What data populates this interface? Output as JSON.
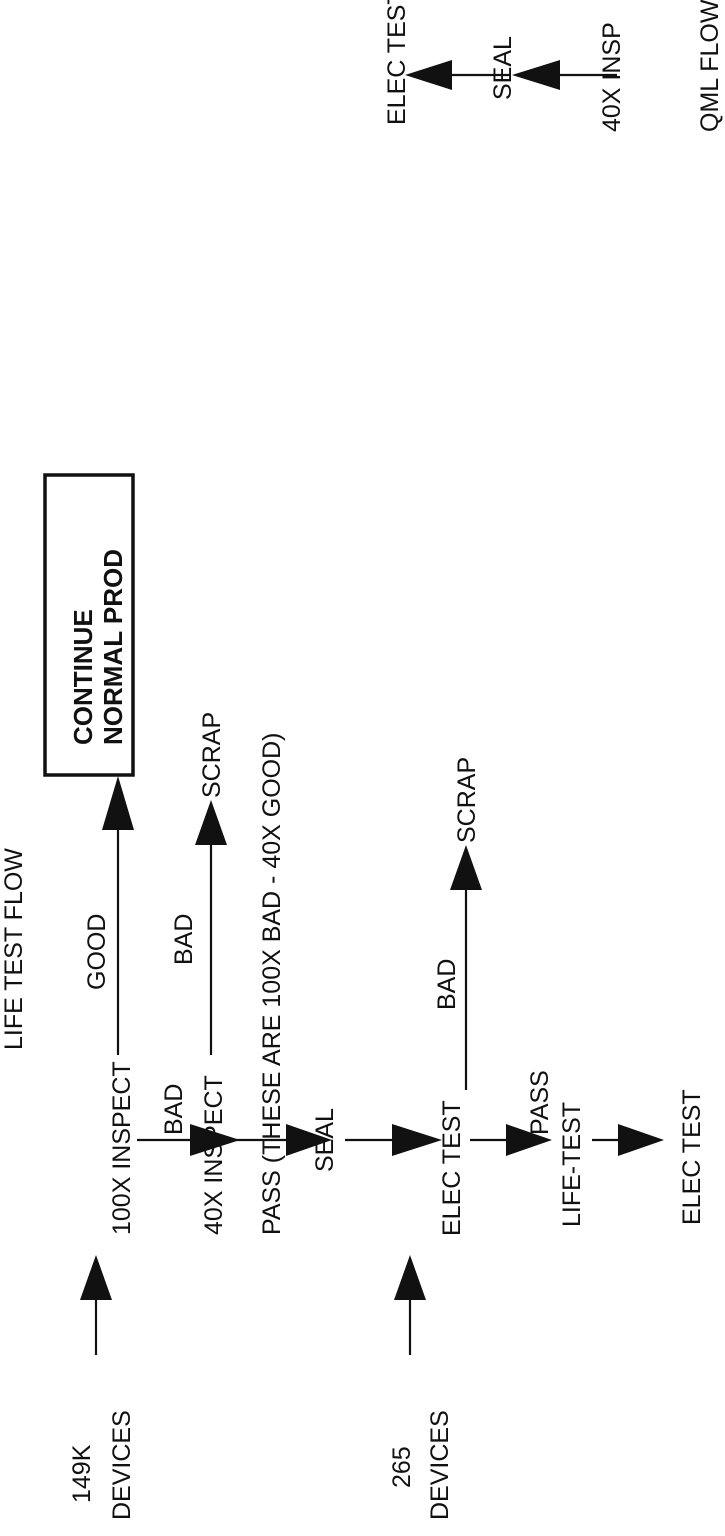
{
  "life_test_flow": {
    "title": "LIFE TEST FLOW",
    "source_149k": [
      "149K",
      "DEVICES"
    ],
    "source_265": [
      "265",
      "DEVICES"
    ],
    "inspect_100x": "100X INSPECT",
    "good": "GOOD",
    "continue_box": [
      "CONTINUE",
      "NORMAL PROD"
    ],
    "bad_1": "BAD",
    "inspect_40x": "40X INSPECT",
    "bad_2": "BAD",
    "scrap_1": "SCRAP",
    "pass_note": "PASS (THESE ARE 100X BAD - 40X GOOD)",
    "seal": "SEAL",
    "elec_test_1": "ELEC TEST",
    "bad_3": "BAD",
    "scrap_2": "SCRAP",
    "pass_2": "PASS",
    "life_test": "LIFE-TEST",
    "elec_test_2": "ELEC TEST"
  },
  "qml_flow": {
    "title": "QML FLOW",
    "inspect_40x": "40X INSP",
    "seal": "SEAL",
    "elec_test": "ELEC TEST"
  }
}
